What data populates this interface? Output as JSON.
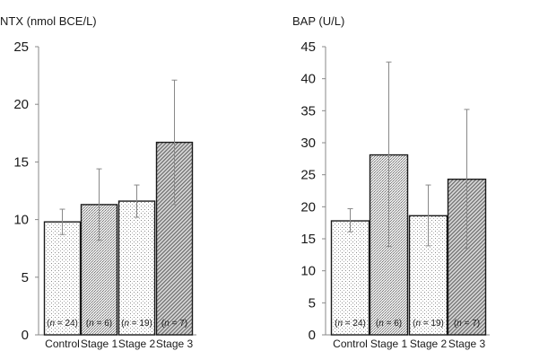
{
  "chart_data": [
    {
      "type": "bar",
      "title": "NTX (nmol BCE/L)",
      "categories": [
        "Control",
        "Stage 1",
        "Stage 2",
        "Stage 3"
      ],
      "ylim": [
        0,
        25
      ],
      "yticks": [
        0,
        5,
        10,
        15,
        20,
        25
      ],
      "grid": false,
      "values": [
        9.8,
        11.3,
        11.6,
        16.7
      ],
      "error_bars": [
        {
          "low": 8.7,
          "high": 10.9
        },
        {
          "low": 8.2,
          "high": 14.4
        },
        {
          "low": 10.2,
          "high": 13.0
        },
        {
          "low": 11.3,
          "high": 22.1
        }
      ],
      "n_labels": [
        "(n = 24)",
        "(n = 6)",
        "(n = 19)",
        "(n = 7)"
      ],
      "bar_patterns": [
        "dots-light",
        "dots-medium",
        "dots-light",
        "diagonal"
      ]
    },
    {
      "type": "bar",
      "title": "BAP (U/L)",
      "categories": [
        "Control",
        "Stage 1",
        "Stage 2",
        "Stage 3"
      ],
      "ylim": [
        0,
        45
      ],
      "yticks": [
        0,
        5,
        10,
        15,
        20,
        25,
        30,
        35,
        40,
        45
      ],
      "grid": false,
      "values": [
        17.8,
        28.1,
        18.6,
        24.3
      ],
      "error_bars": [
        {
          "low": 16.1,
          "high": 19.7
        },
        {
          "low": 13.8,
          "high": 42.6
        },
        {
          "low": 13.9,
          "high": 23.4
        },
        {
          "low": 13.5,
          "high": 35.2
        }
      ],
      "n_labels": [
        "(n = 24)",
        "(n = 6)",
        "(n = 19)",
        "(n = 7)"
      ],
      "bar_patterns": [
        "dots-light",
        "dots-medium",
        "dots-light",
        "diagonal"
      ]
    }
  ],
  "colors": {
    "axis": "#888888",
    "bar_outline": "#1a1a1a",
    "error_bar": "#888888",
    "pattern_ink": "#555555"
  }
}
